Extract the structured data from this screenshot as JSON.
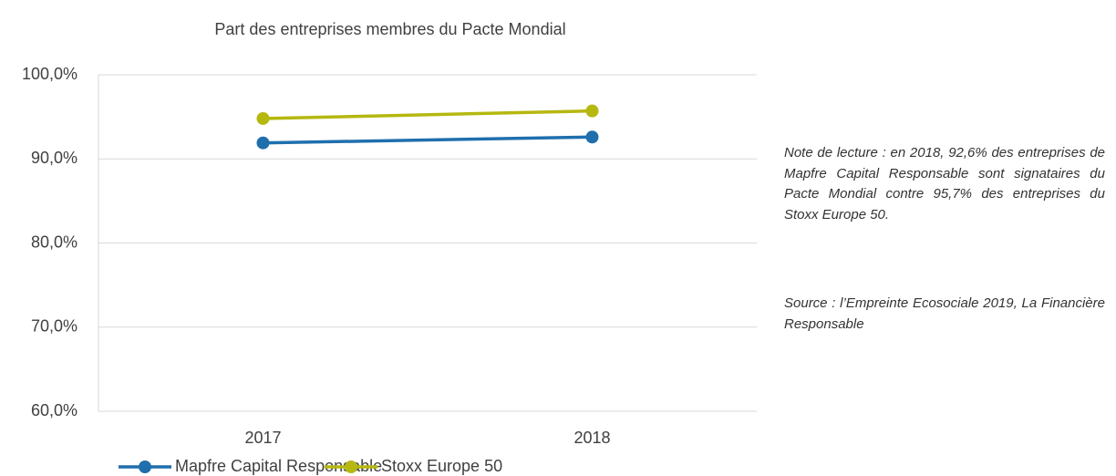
{
  "chart_data": {
    "type": "line",
    "title": "Part des entreprises membres du Pacte Mondial",
    "categories": [
      "2017",
      "2018"
    ],
    "series": [
      {
        "name": "Mapfre Capital Responsable",
        "color": "#1f6fad",
        "values": [
          91.9,
          92.6
        ]
      },
      {
        "name": "Stoxx Europe 50",
        "color": "#b5b80f",
        "values": [
          94.8,
          95.7
        ]
      }
    ],
    "ylim": [
      60,
      100
    ],
    "yticks": [
      {
        "value": 60,
        "label": "60,0%"
      },
      {
        "value": 70,
        "label": "70,0%"
      },
      {
        "value": 80,
        "label": "80,0%"
      },
      {
        "value": 90,
        "label": "90,0%"
      },
      {
        "value": 100,
        "label": "100,0%"
      }
    ],
    "grid": true,
    "legend": "bottom",
    "annotations": [
      "Note de lecture : en 2018, 92,6% des entreprises de Mapfre Capital Responsable sont signataires du Pacte Mondial contre 95,7% des entreprises du Stoxx Europe 50.",
      "Source : l’Empreinte Ecosociale 2019, La Financière Responsable"
    ]
  }
}
